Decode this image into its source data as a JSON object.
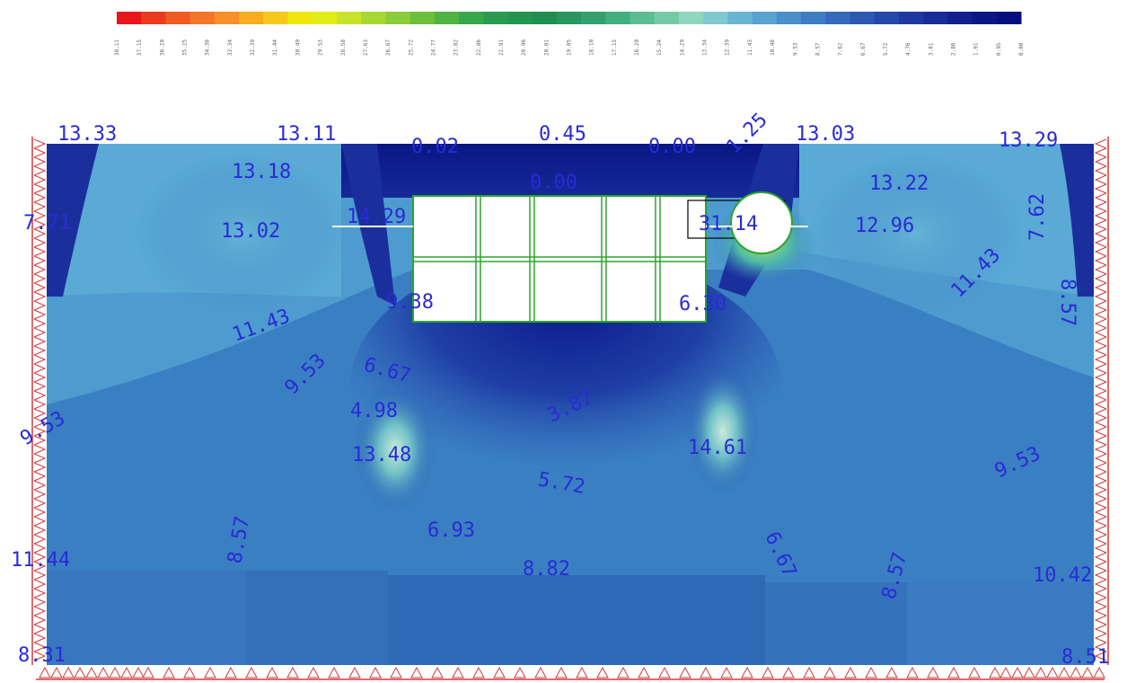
{
  "colorbar": {
    "colors": [
      "#e8151c",
      "#ec3a1e",
      "#f15a20",
      "#f4762a",
      "#f78f2a",
      "#f7ad1e",
      "#f5c81e",
      "#f0e60f",
      "#e2ec17",
      "#c7e32a",
      "#a8d836",
      "#8ccc3c",
      "#6dbf3e",
      "#4fb443",
      "#37a84a",
      "#2a9c50",
      "#23954f",
      "#1e8f52",
      "#26975e",
      "#33a16b",
      "#43ae7d",
      "#5cbd92",
      "#77c9a6",
      "#8ed6bd",
      "#7fc8cf",
      "#68b4d3",
      "#57a2cf",
      "#4a8fc9",
      "#3f7dc2",
      "#356abb",
      "#2c58b2",
      "#2447a8",
      "#1d389f",
      "#172c96",
      "#11208d",
      "#0b1685",
      "#060e7e"
    ],
    "labels": [
      "38.11",
      "37.15",
      "36.20",
      "35.25",
      "34.30",
      "33.34",
      "32.39",
      "31.44",
      "30.49",
      "29.53",
      "28.58",
      "27.63",
      "26.67",
      "25.72",
      "24.77",
      "23.82",
      "22.86",
      "21.91",
      "20.96",
      "20.01",
      "19.05",
      "18.10",
      "17.15",
      "16.20",
      "15.24",
      "14.29",
      "13.34",
      "12.39",
      "11.43",
      "10.48",
      "9.53",
      "8.57",
      "7.62",
      "6.67",
      "5.72",
      "4.76",
      "3.81",
      "2.86",
      "1.91",
      "0.95",
      "0.00"
    ]
  },
  "contour_labels": [
    {
      "text": "13.33",
      "name": "label-top-left"
    },
    {
      "text": "13.11",
      "name": "label-top-center-left"
    },
    {
      "text": "0.02",
      "name": "label-top-excavation-left"
    },
    {
      "text": "0.45",
      "name": "label-top-excavation-center"
    },
    {
      "text": "0.00",
      "name": "label-top-excavation-right"
    },
    {
      "text": "1.25",
      "name": "label-top-pile"
    },
    {
      "text": "13.03",
      "name": "label-top-center-right"
    },
    {
      "text": "13.29",
      "name": "label-top-right"
    },
    {
      "text": "13.18",
      "name": "label-upper-left"
    },
    {
      "text": "13.22",
      "name": "label-upper-right"
    },
    {
      "text": "0.00",
      "name": "label-above-box"
    },
    {
      "text": "7.71",
      "name": "label-left-edge"
    },
    {
      "text": "13.02",
      "name": "label-left-mid"
    },
    {
      "text": "14.29",
      "name": "label-box-left-corner"
    },
    {
      "text": "31.14",
      "name": "label-box-right-corner"
    },
    {
      "text": "12.96",
      "name": "label-right-mid"
    },
    {
      "text": "7.62",
      "name": "label-right-edge-upper"
    },
    {
      "text": "11.43",
      "name": "label-right-contour"
    },
    {
      "text": "8.57",
      "name": "label-right-edge"
    },
    {
      "text": "9.38",
      "name": "label-box-bottom-left"
    },
    {
      "text": "6.30",
      "name": "label-box-bottom-right"
    },
    {
      "text": "11.43",
      "name": "label-left-contour"
    },
    {
      "text": "9.53",
      "name": "label-left-contour-2"
    },
    {
      "text": "6.67",
      "name": "label-below-box-left"
    },
    {
      "text": "4.98",
      "name": "label-stress-low-left"
    },
    {
      "text": "3.87",
      "name": "label-center-trough"
    },
    {
      "text": "9.53",
      "name": "label-left-edge-mid"
    },
    {
      "text": "13.48",
      "name": "label-anchor-left"
    },
    {
      "text": "14.61",
      "name": "label-anchor-right"
    },
    {
      "text": "5.72",
      "name": "label-center-lower"
    },
    {
      "text": "9.53",
      "name": "label-right-edge-mid"
    },
    {
      "text": "8.57",
      "name": "label-left-lower"
    },
    {
      "text": "6.93",
      "name": "label-center-left-lower"
    },
    {
      "text": "11.44",
      "name": "label-left-bottom"
    },
    {
      "text": "8.82",
      "name": "label-center-bottom"
    },
    {
      "text": "6.67",
      "name": "label-right-lower-diagonal"
    },
    {
      "text": "8.57",
      "name": "label-right-lower"
    },
    {
      "text": "10.42",
      "name": "label-right-bottom"
    },
    {
      "text": "8.31",
      "name": "label-bottom-left-corner"
    },
    {
      "text": "8.51",
      "name": "label-bottom-right-corner"
    }
  ]
}
